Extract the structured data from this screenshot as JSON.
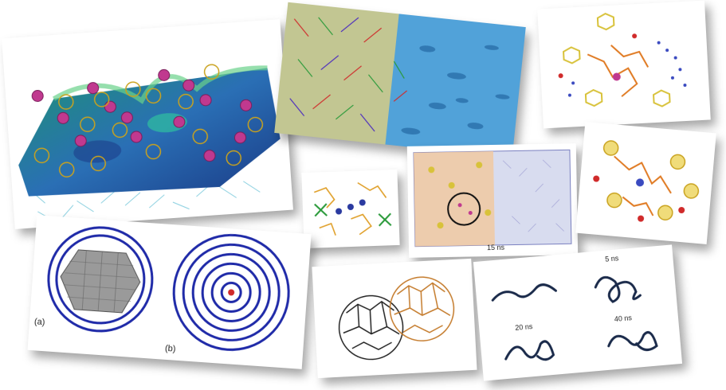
{
  "collage": {
    "panels": [
      {
        "name": "surface-adsorption-panel"
      },
      {
        "name": "membrane-interface-panel"
      },
      {
        "name": "peptide-cluster-panel"
      },
      {
        "name": "ligand-binding-panel"
      },
      {
        "name": "simulation-box-panel"
      },
      {
        "name": "peptide-carborane-panel"
      },
      {
        "name": "polymer-wrapping-panel"
      },
      {
        "name": "fullerene-fusion-panel"
      },
      {
        "name": "chain-folding-panel"
      }
    ],
    "wrapping_labels": {
      "a": "(a)",
      "b": "(b)"
    },
    "box_time_label": "15 ns",
    "folding_times": {
      "t1": "5 ns",
      "t2": "20 ns",
      "t3": "40 ns"
    }
  },
  "colors": {
    "surface_green": "#2aa88a",
    "surface_blue": "#2a5fb0",
    "ion_magenta": "#c0398f",
    "cluster_gold": "#d8b830",
    "water_cyan": "#3aa6d6",
    "polymer_blue": "#1f2aa8",
    "graphene_gray": "#888888",
    "fullerene_orange": "#c47a2a",
    "chain_navy": "#1a2a4a"
  }
}
